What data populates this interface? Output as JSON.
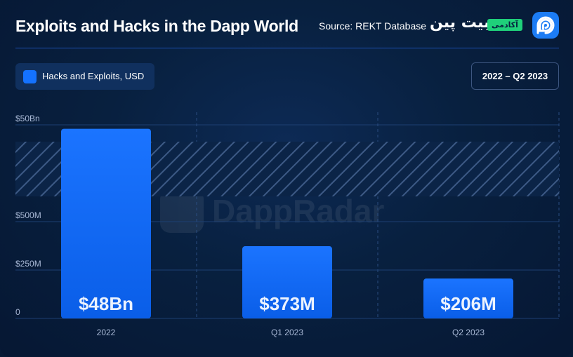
{
  "header": {
    "title": "Exploits and Hacks in the Dapp World",
    "source": "Source: REKT Database",
    "brand_name": "بیت پین",
    "brand_tag": "آکادمی",
    "logo_icon": "dappradar-logo-icon"
  },
  "legend": {
    "label": "Hacks and Exploits, USD",
    "color": "#1472ff"
  },
  "period": "2022 – Q2 2023",
  "watermark": {
    "text": "DappRadar",
    "icon": "dappradar-logo-icon"
  },
  "chart_data": {
    "type": "bar",
    "axis_break": true,
    "categories": [
      "2022",
      "Q1 2023",
      "Q2 2023"
    ],
    "series": [
      {
        "name": "Hacks and Exploits, USD",
        "values": [
          48000000000,
          373000000,
          206000000
        ]
      }
    ],
    "value_labels": [
      "$48Bn",
      "$373M",
      "$206M"
    ],
    "y_ticks": [
      {
        "label": "0",
        "value": 0
      },
      {
        "label": "$250M",
        "value": 250000000
      },
      {
        "label": "$500M",
        "value": 500000000
      },
      {
        "label": "$50Bn",
        "value": 50000000000
      }
    ],
    "ylim_lower": [
      0,
      500000000
    ],
    "colors": {
      "bar": "#1472ff",
      "bar_top": "#1b74ff",
      "bar_bottom": "#0a5ee8"
    },
    "grid": true,
    "legend_position": "top-left"
  }
}
